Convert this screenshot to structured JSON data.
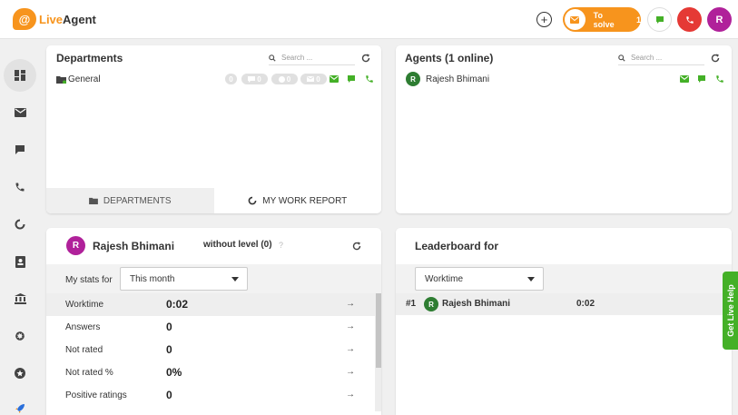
{
  "app": {
    "logo_mark": "@",
    "logo_live": "Live",
    "logo_agent": "Agent"
  },
  "header": {
    "add_icon": "plus-circle-icon",
    "to_solve": {
      "label": "To solve",
      "count": "1"
    },
    "user_initial": "R",
    "colors": {
      "orange": "#f7941d",
      "green": "#44b027",
      "red": "#e53935",
      "purple": "#b0219a"
    }
  },
  "sidebar": {
    "items": [
      {
        "icon": "dashboard-icon",
        "active": true
      },
      {
        "icon": "tickets-icon"
      },
      {
        "icon": "chat-icon"
      },
      {
        "icon": "phone-icon"
      },
      {
        "icon": "reports-icon"
      },
      {
        "icon": "contacts-icon"
      },
      {
        "icon": "knowledgebase-icon"
      },
      {
        "icon": "settings-icon"
      },
      {
        "icon": "plugins-icon"
      },
      {
        "icon": "rocket-icon"
      }
    ]
  },
  "departments": {
    "title": "Departments",
    "search_placeholder": "Search ...",
    "rows": [
      {
        "name": "General",
        "badges": [
          "0",
          "0",
          "0",
          "0"
        ]
      }
    ],
    "tabs": {
      "departments": "DEPARTMENTS",
      "work_report": "MY WORK REPORT"
    }
  },
  "agents": {
    "title": "Agents (1 online)",
    "search_placeholder": "Search ...",
    "rows": [
      {
        "initial": "R",
        "name": "Rajesh Bhimani"
      }
    ]
  },
  "stats": {
    "user_initial": "R",
    "user_name": "Rajesh Bhimani",
    "level": "without level (0)",
    "help": "?",
    "my_stats_for": "My stats for",
    "period": "This month",
    "rows": [
      {
        "label": "Worktime",
        "value": "0:02"
      },
      {
        "label": "Answers",
        "value": "0"
      },
      {
        "label": "Not rated",
        "value": "0"
      },
      {
        "label": "Not rated %",
        "value": "0%"
      },
      {
        "label": "Positive ratings",
        "value": "0"
      }
    ]
  },
  "leaderboard": {
    "title": "Leaderboard for",
    "metric": "Worktime",
    "rows": [
      {
        "rank": "#1",
        "initial": "R",
        "name": "Rajesh Bhimani",
        "value": "0:02"
      }
    ]
  },
  "live_help": {
    "label": "Get Live Help"
  }
}
